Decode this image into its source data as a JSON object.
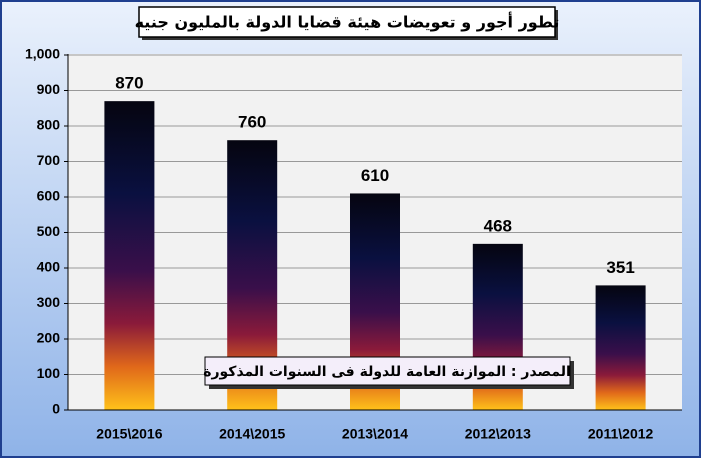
{
  "chart_data": {
    "type": "bar",
    "title": "تطور أجور و تعويضات هيئة قضايا الدولة بالمليون جنيه",
    "annotation": "المصدر : الموازنة العامة للدولة فى السنوات المذكورة",
    "categories": [
      "2015\\2016",
      "2014\\2015",
      "2013\\2014",
      "2012\\2013",
      "2011\\2012"
    ],
    "values": [
      870,
      760,
      610,
      468,
      351
    ],
    "ylim": [
      0,
      1000
    ],
    "yticks": [
      0,
      100,
      200,
      300,
      400,
      500,
      600,
      700,
      800,
      900,
      {
        "value": 1000,
        "label": "1,000"
      }
    ],
    "grid": true
  }
}
